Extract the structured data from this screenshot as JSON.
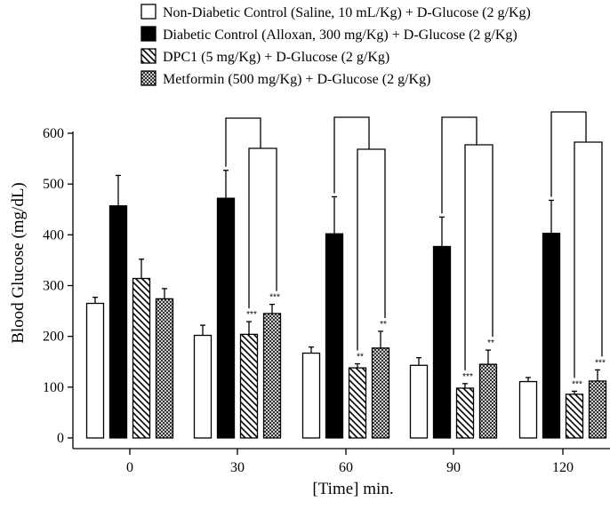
{
  "chart_data": {
    "type": "bar",
    "title": "",
    "xlabel": "[Time] min.",
    "ylabel": "Blood Glucose (mg/dL)",
    "ylim": [
      0,
      600
    ],
    "yticks": [
      0,
      100,
      200,
      300,
      400,
      500,
      600
    ],
    "categories": [
      "0",
      "30",
      "60",
      "90",
      "120"
    ],
    "legend_position": "top",
    "series": [
      {
        "name": "Non-Diabetic Control (Saline, 10 mL/Kg) + D-Glucose (2 g/Kg)",
        "pattern": "white",
        "values": [
          265,
          202,
          167,
          143,
          111
        ],
        "errors": [
          12,
          20,
          12,
          15,
          8
        ],
        "significance": [
          "",
          "",
          "",
          "",
          ""
        ]
      },
      {
        "name": "Diabetic Control (Alloxan, 300 mg/Kg) + D-Glucose (2 g/Kg)",
        "pattern": "black",
        "values": [
          457,
          472,
          402,
          377,
          403
        ],
        "errors": [
          60,
          55,
          73,
          58,
          65
        ],
        "significance": [
          "",
          "",
          "",
          "",
          ""
        ]
      },
      {
        "name": "DPC1 (5 mg/Kg) + D-Glucose (2 g/Kg)",
        "pattern": "hatch-backslash",
        "values": [
          314,
          204,
          138,
          98,
          86
        ],
        "errors": [
          38,
          25,
          8,
          9,
          6
        ],
        "significance": [
          "",
          "***",
          "**",
          "***",
          "***"
        ]
      },
      {
        "name": "Metformin (500 mg/Kg) + D-Glucose (2 g/Kg)",
        "pattern": "crosshatch",
        "values": [
          274,
          245,
          177,
          145,
          112
        ],
        "errors": [
          20,
          18,
          33,
          28,
          22
        ],
        "significance": [
          "",
          "***",
          "**",
          "**",
          "***"
        ]
      }
    ],
    "comparison_brackets": [
      {
        "category": "30",
        "from_series": 1,
        "to_series": [
          2,
          3
        ]
      },
      {
        "category": "60",
        "from_series": 1,
        "to_series": [
          2,
          3
        ]
      },
      {
        "category": "90",
        "from_series": 1,
        "to_series": [
          2,
          3
        ]
      },
      {
        "category": "120",
        "from_series": 1,
        "to_series": [
          2,
          3
        ]
      }
    ]
  }
}
